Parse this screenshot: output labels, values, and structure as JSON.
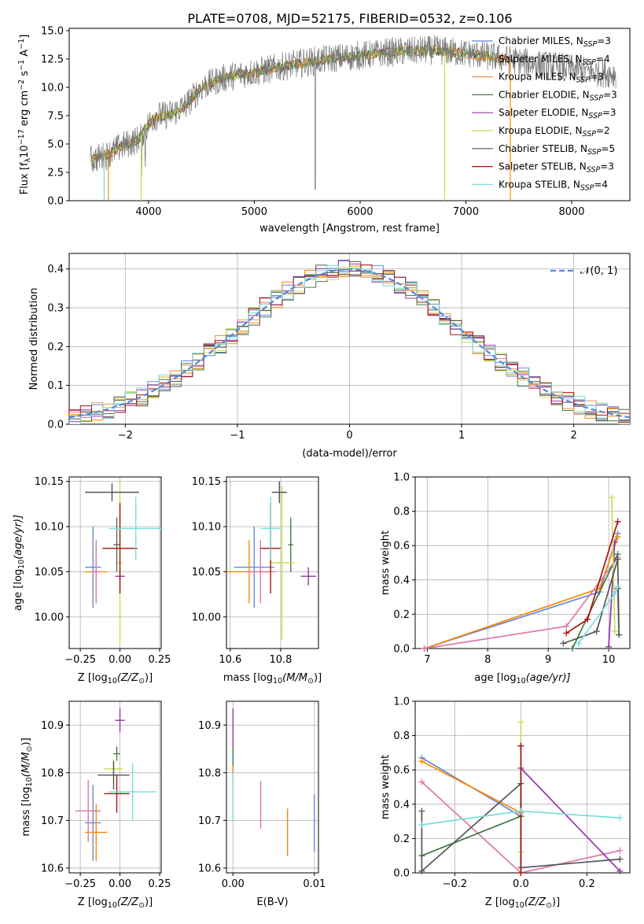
{
  "colors": {
    "chabrier_miles": "#6688dd",
    "salpeter_miles": "#ff8800",
    "kroupa_miles": "#dd9955",
    "chabrier_elodie": "#447744",
    "salpeter_elodie": "#9933aa",
    "kroupa_elodie": "#ccdd55",
    "chabrier_stelib": "#555555",
    "salpeter_stelib": "#aa1111",
    "kroupa_stelib": "#77dddd",
    "gaussian": "#5588dd",
    "extra_pink": "#dd77aa"
  },
  "chart_data": [
    {
      "id": "spectrum",
      "type": "line",
      "title": "PLATE=0708, MJD=52175, FIBERID=0532, z=0.106",
      "xlabel": "wavelength [Angstrom, rest frame]",
      "ylabel": "Flux [f",
      "ylabel_parts": [
        "Flux [f",
        "λ",
        "10",
        "−17",
        " erg cm",
        "−2",
        " s",
        "−1",
        " A",
        "−1",
        "]"
      ],
      "xlim": [
        3250,
        8550
      ],
      "ylim": [
        0,
        15.2
      ],
      "xticks": [
        4000,
        5000,
        6000,
        7000,
        8000
      ],
      "yticks": [
        0.0,
        2.5,
        5.0,
        7.5,
        10.0,
        12.5,
        15.0
      ],
      "xtick_labels": [
        "4000",
        "5000",
        "6000",
        "7000",
        "8000"
      ],
      "ytick_labels": [
        "0.0",
        "2.5",
        "5.0",
        "7.5",
        "10.0",
        "12.5",
        "15.0"
      ],
      "legend_position": "top-right",
      "continuum": {
        "x": [
          3450,
          3600,
          3750,
          3900,
          4050,
          4200,
          4350,
          4500,
          4700,
          4900,
          5100,
          5300,
          5500,
          5700,
          5900,
          6100,
          6300,
          6500,
          6700,
          6900,
          7100,
          7300,
          7500,
          7700,
          7900,
          8100,
          8250,
          8400
        ],
        "y": [
          3.6,
          4.0,
          4.8,
          5.4,
          7.4,
          7.6,
          8.4,
          10.0,
          10.8,
          11.2,
          11.5,
          11.9,
          12.2,
          12.5,
          12.7,
          12.9,
          13.1,
          13.2,
          13.3,
          13.1,
          12.9,
          12.6,
          12.3,
          12.0,
          11.8,
          11.5,
          11.3,
          11.2
        ]
      },
      "series": [
        {
          "name": "Chabrier MILES, N",
          "nssp": "=3",
          "key": "chabrier_miles"
        },
        {
          "name": "Salpeter MILES, N",
          "nssp": "=4",
          "key": "salpeter_miles"
        },
        {
          "name": "Kroupa MILES, N",
          "nssp": "=3",
          "key": "kroupa_miles"
        },
        {
          "name": "Chabrier ELODIE, N",
          "nssp": "=3",
          "key": "chabrier_elodie"
        },
        {
          "name": "Salpeter ELODIE, N",
          "nssp": "=3",
          "key": "salpeter_elodie"
        },
        {
          "name": "Kroupa ELODIE, N",
          "nssp": "=2",
          "key": "kroupa_elodie"
        },
        {
          "name": "Chabrier STELIB, N",
          "nssp": "=5",
          "key": "chabrier_stelib"
        },
        {
          "name": "Salpeter STELIB, N",
          "nssp": "=3",
          "key": "salpeter_stelib"
        },
        {
          "name": "Kroupa STELIB, N",
          "nssp": "=4",
          "key": "kroupa_stelib"
        }
      ],
      "nssp_sub": "SSP"
    },
    {
      "id": "residuals",
      "type": "histogram",
      "xlabel": "(data-model)/error",
      "ylabel": "Normed distribution",
      "xlim": [
        -2.5,
        2.5
      ],
      "ylim": [
        0,
        0.44
      ],
      "xticks": [
        -2,
        -1,
        0,
        1,
        2
      ],
      "xtick_labels": [
        "−2",
        "−1",
        "0",
        "1",
        "2"
      ],
      "yticks": [
        0.0,
        0.1,
        0.2,
        0.3,
        0.4
      ],
      "ytick_labels": [
        "0.0",
        "0.1",
        "0.2",
        "0.3",
        "0.4"
      ],
      "bin_width": 0.1,
      "grid": true,
      "legend_position": "top-right",
      "gaussian_label": "𝒩(0, 1)",
      "series_keys": [
        "chabrier_miles",
        "salpeter_miles",
        "kroupa_miles",
        "chabrier_elodie",
        "salpeter_elodie",
        "kroupa_elodie",
        "chabrier_stelib",
        "salpeter_stelib",
        "kroupa_stelib"
      ]
    },
    {
      "id": "age_vs_z",
      "type": "errorbar",
      "xlabel": "Z [log",
      "xlabel_parts": [
        "Z [log",
        "10",
        "(Z/Z",
        "⊙",
        ")]"
      ],
      "ylabel_parts": [
        "age  [log",
        "10",
        "(age/yr)]"
      ],
      "xlim": [
        -0.32,
        0.26
      ],
      "ylim": [
        9.965,
        10.155
      ],
      "xticks": [
        -0.25,
        0.0,
        0.25
      ],
      "xtick_labels": [
        "−0.25",
        "0.00",
        "0.25"
      ],
      "yticks": [
        10.0,
        10.05,
        10.1,
        10.15
      ],
      "ytick_labels": [
        "10.00",
        "10.05",
        "10.10",
        "10.15"
      ],
      "points": [
        {
          "key": "chabrier_miles",
          "x": -0.17,
          "xerr": 0.05,
          "y": 10.055,
          "yerr": 0.045
        },
        {
          "key": "salpeter_miles",
          "x": -0.15,
          "xerr": 0.07,
          "y": 10.05,
          "yerr": 0.03
        },
        {
          "key": "extra_pink",
          "x": -0.15,
          "xerr": 0.03,
          "y": 10.05,
          "yerr": 0.035
        },
        {
          "key": "chabrier_elodie",
          "x": -0.02,
          "xerr": 0.02,
          "y": 10.08,
          "yerr": 0.03
        },
        {
          "key": "salpeter_elodie",
          "x": 0.0,
          "xerr": 0.03,
          "y": 10.045,
          "yerr": 0.01
        },
        {
          "key": "kroupa_elodie",
          "x": 0.0,
          "xerr": 0.015,
          "y": 10.06,
          "yerr": 0.09
        },
        {
          "key": "chabrier_stelib",
          "x": -0.05,
          "xerr": 0.17,
          "y": 10.138,
          "yerr": 0.01
        },
        {
          "key": "salpeter_stelib",
          "x": 0.0,
          "xerr": 0.11,
          "y": 10.076,
          "yerr": 0.05
        },
        {
          "key": "kroupa_stelib",
          "x": 0.1,
          "xerr": 0.17,
          "y": 10.098,
          "yerr": 0.035
        }
      ]
    },
    {
      "id": "age_vs_mass",
      "type": "errorbar",
      "xlabel_parts": [
        "mass [log",
        "10",
        "(M/M",
        "⊙",
        ")]"
      ],
      "xlim": [
        10.585,
        10.95
      ],
      "ylim": [
        9.965,
        10.155
      ],
      "xticks": [
        10.6,
        10.8
      ],
      "xtick_labels": [
        "10.6",
        "10.8"
      ],
      "yticks": [
        10.0,
        10.05,
        10.1,
        10.15
      ],
      "ytick_labels": [
        "10.00",
        "10.05",
        "10.10",
        "10.15"
      ],
      "points": [
        {
          "key": "chabrier_miles",
          "x": 10.695,
          "xerr": 0.08,
          "y": 10.055,
          "yerr": 0.045
        },
        {
          "key": "salpeter_miles",
          "x": 10.675,
          "xerr": 0.09,
          "y": 10.05,
          "yerr": 0.035
        },
        {
          "key": "extra_pink",
          "x": 10.72,
          "xerr": 0.06,
          "y": 10.05,
          "yerr": 0.035
        },
        {
          "key": "chabrier_elodie",
          "x": 10.84,
          "xerr": 0.01,
          "y": 10.08,
          "yerr": 0.03
        },
        {
          "key": "salpeter_elodie",
          "x": 10.91,
          "xerr": 0.03,
          "y": 10.045,
          "yerr": 0.01
        },
        {
          "key": "kroupa_elodie",
          "x": 10.805,
          "xerr": 0.05,
          "y": 10.06,
          "yerr": 0.085
        },
        {
          "key": "chabrier_stelib",
          "x": 10.795,
          "xerr": 0.03,
          "y": 10.138,
          "yerr": 0.012
        },
        {
          "key": "salpeter_stelib",
          "x": 10.76,
          "xerr": 0.04,
          "y": 10.076,
          "yerr": 0.05
        },
        {
          "key": "kroupa_stelib",
          "x": 10.76,
          "xerr": 0.04,
          "y": 10.098,
          "yerr": 0.035
        }
      ]
    },
    {
      "id": "weight_vs_age",
      "type": "line",
      "xlabel_parts": [
        "age  [log",
        "10",
        "(age/yr)]"
      ],
      "ylabel": "mass weight",
      "xlim": [
        6.8,
        10.35
      ],
      "ylim": [
        0,
        1.0
      ],
      "xticks": [
        7,
        8,
        9,
        10
      ],
      "xtick_labels": [
        "7",
        "8",
        "9",
        "10"
      ],
      "yticks": [
        0.0,
        0.2,
        0.4,
        0.6,
        0.8,
        1.0
      ],
      "ytick_labels": [
        "0.0",
        "0.2",
        "0.4",
        "0.6",
        "0.8",
        "1.0"
      ],
      "series": [
        {
          "key": "chabrier_miles",
          "x": [
            6.95,
            9.85,
            10.15
          ],
          "y": [
            0.0,
            0.33,
            0.67
          ]
        },
        {
          "key": "salpeter_miles",
          "x": [
            6.95,
            9.85,
            10.15
          ],
          "y": [
            0.0,
            0.35,
            0.65
          ]
        },
        {
          "key": "extra_pink",
          "x": [
            6.95,
            9.3,
            10.15
          ],
          "y": [
            0.0,
            0.13,
            0.53
          ]
        },
        {
          "key": "chabrier_elodie",
          "x": [
            9.4,
            10.15
          ],
          "y": [
            0.0,
            0.55
          ]
        },
        {
          "key": "salpeter_elodie",
          "x": [
            10.0,
            10.1
          ],
          "y": [
            0.01,
            0.62
          ]
        },
        {
          "key": "kroupa_elodie",
          "x": [
            10.05,
            10.1
          ],
          "y": [
            0.88,
            0.1
          ]
        },
        {
          "key": "chabrier_stelib",
          "x": [
            9.25,
            9.8,
            10.15,
            10.17,
            10.15
          ],
          "y": [
            0.03,
            0.1,
            0.52,
            0.08,
            0.35
          ]
        },
        {
          "key": "salpeter_stelib",
          "x": [
            9.3,
            9.65,
            10.15
          ],
          "y": [
            0.09,
            0.17,
            0.74
          ]
        },
        {
          "key": "kroupa_stelib",
          "x": [
            9.5,
            10.1,
            10.15
          ],
          "y": [
            0.03,
            0.32,
            0.36
          ]
        }
      ]
    },
    {
      "id": "mass_vs_z",
      "type": "errorbar",
      "xlabel_parts": [
        "Z [log",
        "10",
        "(Z/Z",
        "⊙",
        ")]"
      ],
      "ylabel_parts": [
        "mass [log",
        "10",
        "(M/M",
        "⊙",
        ")]"
      ],
      "xlim": [
        -0.32,
        0.26
      ],
      "ylim": [
        10.59,
        10.95
      ],
      "xticks": [
        -0.25,
        0.0,
        0.25
      ],
      "xtick_labels": [
        "−0.25",
        "0.00",
        "0.25"
      ],
      "yticks": [
        10.6,
        10.7,
        10.8,
        10.9
      ],
      "ytick_labels": [
        "10.6",
        "10.7",
        "10.8",
        "10.9"
      ],
      "points": [
        {
          "key": "chabrier_miles",
          "x": -0.17,
          "xerr": 0.05,
          "y": 10.695,
          "yerr": 0.08
        },
        {
          "key": "salpeter_miles",
          "x": -0.15,
          "xerr": 0.07,
          "y": 10.675,
          "yerr": 0.06
        },
        {
          "key": "extra_pink",
          "x": -0.2,
          "xerr": 0.08,
          "y": 10.72,
          "yerr": 0.065
        },
        {
          "key": "chabrier_elodie",
          "x": -0.02,
          "xerr": 0.02,
          "y": 10.84,
          "yerr": 0.015
        },
        {
          "key": "salpeter_elodie",
          "x": 0.0,
          "xerr": 0.03,
          "y": 10.91,
          "yerr": 0.025
        },
        {
          "key": "kroupa_elodie",
          "x": -0.04,
          "xerr": 0.06,
          "y": 10.808,
          "yerr": 0.02
        },
        {
          "key": "chabrier_stelib",
          "x": -0.04,
          "xerr": 0.1,
          "y": 10.795,
          "yerr": 0.03
        },
        {
          "key": "salpeter_stelib",
          "x": -0.02,
          "xerr": 0.08,
          "y": 10.756,
          "yerr": 0.04
        },
        {
          "key": "kroupa_stelib",
          "x": 0.08,
          "xerr": 0.15,
          "y": 10.76,
          "yerr": 0.06
        }
      ]
    },
    {
      "id": "mass_vs_ebv",
      "type": "errorbar",
      "xlabel": "E(B-V)",
      "xlim": [
        -0.0008,
        0.0105
      ],
      "ylim": [
        10.59,
        10.95
      ],
      "xticks": [
        0.0,
        0.01
      ],
      "xtick_labels": [
        "0.00",
        "0.01"
      ],
      "yticks": [
        10.6,
        10.7,
        10.8,
        10.9
      ],
      "ytick_labels": [
        "10.6",
        "10.7",
        "10.8",
        "10.9"
      ],
      "points": [
        {
          "key": "salpeter_elodie",
          "x": 0.0,
          "xerr": 0,
          "y": 10.895,
          "yerr": 0.04
        },
        {
          "key": "chabrier_elodie",
          "x": 0.0,
          "xerr": 0,
          "y": 10.815,
          "yerr": 0.04
        },
        {
          "key": "salpeter_miles",
          "x": 0.0,
          "xerr": 0,
          "y": 10.8,
          "yerr": 0.015
        },
        {
          "key": "kroupa_stelib",
          "x": 0.0,
          "xerr": 0,
          "y": 10.75,
          "yerr": 0.05
        },
        {
          "key": "extra_pink",
          "x": 0.0034,
          "xerr": 0,
          "y": 10.733,
          "yerr": 0.05
        },
        {
          "key": "salpeter_miles",
          "x": 0.0067,
          "xerr": 0,
          "y": 10.675,
          "yerr": 0.05
        },
        {
          "key": "chabrier_miles",
          "x": 0.01,
          "xerr": 0,
          "y": 10.695,
          "yerr": 0.06
        }
      ]
    },
    {
      "id": "weight_vs_z",
      "type": "line",
      "xlabel_parts": [
        "Z [log",
        "10",
        "(Z/Z",
        "⊙",
        ")]"
      ],
      "ylabel": "mass weight",
      "xlim": [
        -0.32,
        0.33
      ],
      "ylim": [
        0,
        1.0
      ],
      "xticks": [
        -0.2,
        0.0,
        0.2
      ],
      "xtick_labels": [
        "−0.2",
        "0.0",
        "0.2"
      ],
      "yticks": [
        0.0,
        0.2,
        0.4,
        0.6,
        0.8,
        1.0
      ],
      "ytick_labels": [
        "0.0",
        "0.2",
        "0.4",
        "0.6",
        "0.8",
        "1.0"
      ],
      "series": [
        {
          "key": "chabrier_miles",
          "x": [
            -0.3,
            0.0,
            0.0
          ],
          "y": [
            0.67,
            0.33,
            0.35
          ]
        },
        {
          "key": "salpeter_miles",
          "x": [
            -0.3,
            0.0
          ],
          "y": [
            0.65,
            0.35
          ]
        },
        {
          "key": "extra_pink",
          "x": [
            -0.3,
            0.0,
            0.3
          ],
          "y": [
            0.53,
            0.0,
            0.13
          ]
        },
        {
          "key": "chabrier_elodie",
          "x": [
            -0.3,
            0.0
          ],
          "y": [
            0.1,
            0.33
          ]
        },
        {
          "key": "salpeter_elodie",
          "x": [
            0.0,
            0.3
          ],
          "y": [
            0.61,
            0.01
          ]
        },
        {
          "key": "kroupa_elodie",
          "x": [
            0.0,
            0.0
          ],
          "y": [
            0.88,
            0.12
          ]
        },
        {
          "key": "chabrier_stelib",
          "x": [
            -0.3,
            -0.3,
            0.0,
            0.0,
            0.3
          ],
          "y": [
            0.36,
            0.01,
            0.52,
            0.03,
            0.08
          ]
        },
        {
          "key": "salpeter_stelib",
          "x": [
            0.0,
            0.0
          ],
          "y": [
            0.74,
            0.0
          ]
        },
        {
          "key": "kroupa_stelib",
          "x": [
            -0.3,
            0.0,
            0.3
          ],
          "y": [
            0.28,
            0.36,
            0.32
          ]
        }
      ]
    }
  ]
}
